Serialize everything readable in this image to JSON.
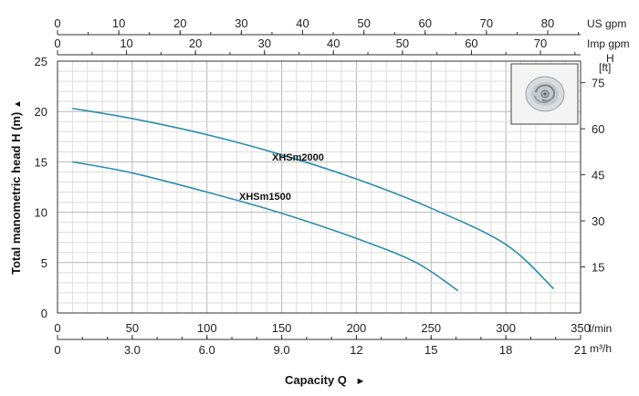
{
  "chart_data": {
    "type": "line",
    "ylabel": "Total manometric head H (m)",
    "ylabel_arrow": "▲",
    "xlabel": "Capacity Q",
    "xlabel_arrow": "►",
    "xlim": [
      0,
      350
    ],
    "ylim": [
      0,
      25
    ],
    "grid": true,
    "axes": {
      "x_lmin": {
        "unit": "l/min",
        "ticks": [
          0,
          50,
          100,
          150,
          200,
          250,
          300,
          350
        ]
      },
      "x_m3h": {
        "unit": "m³/h",
        "ticks": [
          "0",
          "3.0",
          "6.0",
          "9.0",
          "12",
          "15",
          "18",
          "21"
        ]
      },
      "x_usgpm": {
        "unit": "US gpm",
        "ticks": [
          0,
          10,
          20,
          30,
          40,
          50,
          60,
          70,
          80
        ]
      },
      "x_impgpm": {
        "unit": "Imp gpm",
        "ticks": [
          0,
          10,
          20,
          30,
          40,
          50,
          60,
          70
        ]
      },
      "y_m": {
        "ticks": [
          0,
          5,
          10,
          15,
          20,
          25
        ]
      },
      "y_ft": {
        "unit_line1": "H",
        "unit_line2": "[ft]",
        "ticks": [
          15,
          30,
          45,
          60,
          75
        ]
      }
    },
    "series": [
      {
        "name": "XHSm2000",
        "color": "#2a8fae",
        "x": [
          10,
          50,
          100,
          150,
          200,
          250,
          300,
          332
        ],
        "y": [
          20.3,
          19.3,
          17.7,
          15.7,
          13.3,
          10.4,
          6.8,
          2.4
        ]
      },
      {
        "name": "XHSm1500",
        "color": "#2a8fae",
        "x": [
          10,
          50,
          100,
          150,
          200,
          240,
          268
        ],
        "y": [
          15.0,
          13.9,
          12.0,
          9.9,
          7.4,
          5.0,
          2.2
        ]
      }
    ],
    "thumbnail": "impeller-icon"
  }
}
